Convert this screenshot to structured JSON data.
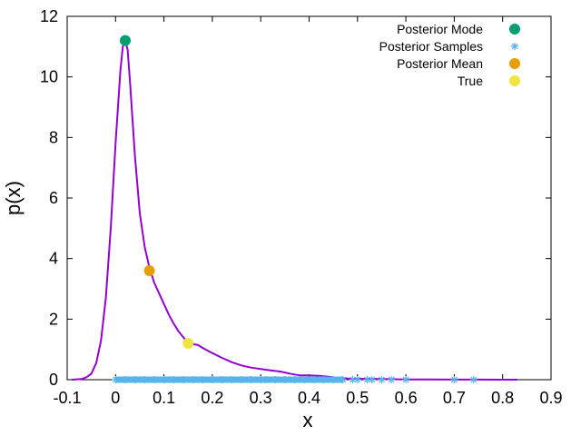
{
  "chart_data": {
    "type": "line",
    "title": "",
    "xlabel": "x",
    "ylabel": "p(x)",
    "xlim": [
      -0.1,
      0.9
    ],
    "ylim": [
      0,
      12
    ],
    "xticks": [
      -0.1,
      0,
      0.1,
      0.2,
      0.3,
      0.4,
      0.5,
      0.6,
      0.7,
      0.8,
      0.9
    ],
    "xtick_labels": [
      "-0.1",
      "0",
      "0.1",
      "0.2",
      "0.3",
      "0.4",
      "0.5",
      "0.6",
      "0.7",
      "0.8",
      "0.9"
    ],
    "yticks": [
      0,
      2,
      4,
      6,
      8,
      10,
      12
    ],
    "ytick_labels": [
      "0",
      "2",
      "4",
      "6",
      "8",
      "10",
      "12"
    ],
    "grid": false,
    "legend_position": "top-right",
    "colors": {
      "density": "#9400d3",
      "mode": "#009e73",
      "samples": "#56b4e9",
      "mean": "#e69f00",
      "true": "#f0e442"
    },
    "density": {
      "x": [
        -0.09,
        -0.07,
        -0.06,
        -0.05,
        -0.04,
        -0.03,
        -0.02,
        -0.01,
        0.0,
        0.01,
        0.015,
        0.02,
        0.025,
        0.03,
        0.04,
        0.05,
        0.06,
        0.07,
        0.08,
        0.09,
        0.1,
        0.11,
        0.12,
        0.13,
        0.14,
        0.15,
        0.16,
        0.17,
        0.18,
        0.2,
        0.22,
        0.24,
        0.26,
        0.28,
        0.3,
        0.32,
        0.34,
        0.36,
        0.38,
        0.4,
        0.42,
        0.44,
        0.46,
        0.48,
        0.5,
        0.55,
        0.6,
        0.65,
        0.7,
        0.75,
        0.8,
        0.83
      ],
      "y": [
        0,
        0.02,
        0.08,
        0.2,
        0.55,
        1.3,
        2.7,
        5.0,
        7.8,
        10.2,
        11.0,
        11.2,
        10.9,
        9.8,
        7.4,
        5.5,
        4.4,
        3.7,
        3.2,
        2.85,
        2.5,
        2.15,
        1.85,
        1.6,
        1.4,
        1.2,
        1.17,
        1.15,
        1.05,
        0.88,
        0.72,
        0.58,
        0.47,
        0.4,
        0.35,
        0.31,
        0.27,
        0.2,
        0.14,
        0.14,
        0.13,
        0.1,
        0.06,
        0.04,
        0.03,
        0.02,
        0.01,
        0.005,
        0.003,
        0.002,
        0.001,
        0.0
      ]
    },
    "series": [
      {
        "name": "Posterior Mode",
        "x": [
          0.02
        ],
        "y": [
          11.2
        ]
      },
      {
        "name": "Posterior Samples",
        "x": [
          0.0,
          0.02,
          0.04,
          0.06,
          0.08,
          0.1,
          0.12,
          0.14,
          0.16,
          0.18,
          0.2,
          0.22,
          0.24,
          0.26,
          0.28,
          0.3,
          0.31,
          0.33,
          0.35,
          0.37,
          0.39,
          0.41,
          0.43,
          0.45,
          0.47,
          0.49,
          0.5,
          0.52,
          0.53,
          0.55,
          0.57,
          0.6,
          0.7,
          0.74
        ],
        "y": [
          0,
          0,
          0,
          0,
          0,
          0,
          0,
          0,
          0,
          0,
          0,
          0,
          0,
          0,
          0,
          0,
          0,
          0,
          0,
          0,
          0,
          0,
          0,
          0,
          0,
          0,
          0,
          0,
          0,
          0,
          0,
          0,
          0,
          0
        ]
      },
      {
        "name": "Posterior Mean",
        "x": [
          0.07
        ],
        "y": [
          3.6
        ]
      },
      {
        "name": "True",
        "x": [
          0.15
        ],
        "y": [
          1.2
        ]
      }
    ]
  }
}
